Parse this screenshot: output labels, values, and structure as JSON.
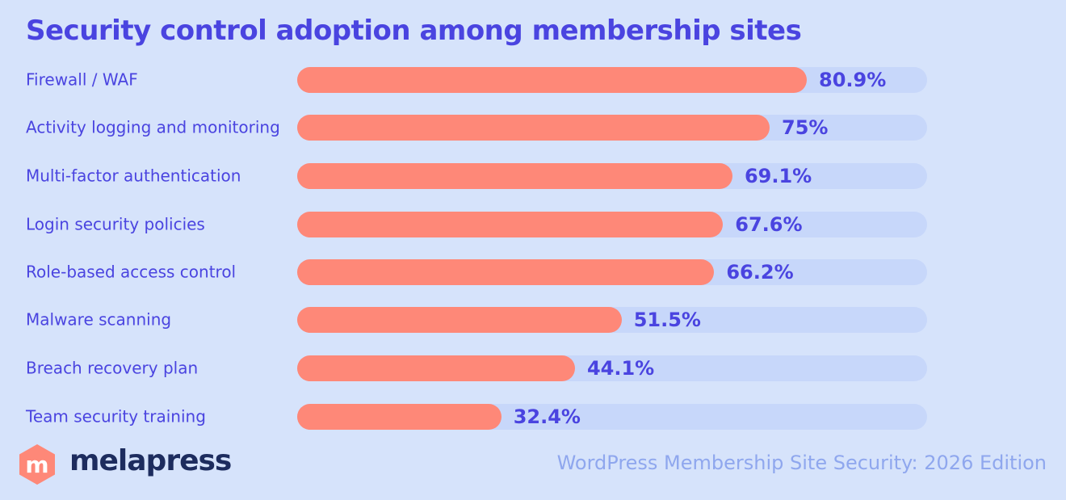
{
  "chart_data": {
    "type": "bar",
    "orientation": "horizontal",
    "title": "Security control adoption among membership sites",
    "categories": [
      "Firewall / WAF",
      "Activity logging and monitoring",
      "Multi-factor authentication",
      "Login security policies",
      "Role-based access control",
      "Malware scanning",
      "Breach recovery plan",
      "Team security training"
    ],
    "values": [
      80.9,
      75,
      69.1,
      67.6,
      66.2,
      51.5,
      44.1,
      32.4
    ],
    "value_labels": [
      "80.9%",
      "75%",
      "69.1%",
      "67.6%",
      "66.2%",
      "51.5%",
      "44.1%",
      "32.4%"
    ],
    "xlim": [
      0,
      100
    ],
    "grid": false,
    "colors": {
      "bar": "#fe8878",
      "track": "#c7d7fa",
      "text": "#4a44e0",
      "background": "#d6e3fb"
    }
  },
  "brand": {
    "name": "melapress",
    "logo_letter": "m",
    "logo_color": "#fe8878"
  },
  "source": "WordPress Membership Site Security: 2026 Edition"
}
